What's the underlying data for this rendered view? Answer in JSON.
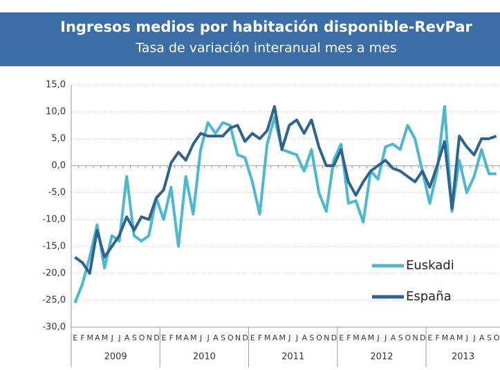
{
  "chart_data": {
    "type": "line",
    "title": "Ingresos medios por habitación disponible-RevPar",
    "subtitle": "Tasa de variación interanual mes a mes",
    "categories": [
      "E",
      "F",
      "M",
      "A",
      "M",
      "J",
      "J",
      "A",
      "S",
      "O",
      "N",
      "D",
      "E",
      "F",
      "M",
      "A",
      "M",
      "J",
      "J",
      "A",
      "S",
      "O",
      "N",
      "D",
      "E",
      "F",
      "M",
      "A",
      "M",
      "J",
      "J",
      "A",
      "S",
      "O",
      "N",
      "D",
      "E",
      "F",
      "M",
      "A",
      "M",
      "J",
      "J",
      "A",
      "S",
      "O",
      "N",
      "D",
      "E",
      "F",
      "M",
      "A",
      "M",
      "J",
      "J",
      "A",
      "S",
      "O"
    ],
    "years": [
      "2009",
      "2010",
      "2011",
      "2012",
      "2013"
    ],
    "series": [
      {
        "name": "Euskadi",
        "color": "#4bb8d2",
        "values": [
          -25.5,
          -22,
          -17,
          -11,
          -19,
          -13,
          -14,
          -2,
          -13,
          -14,
          -13,
          -6,
          -10,
          -4,
          -15,
          -2,
          -9,
          3,
          8,
          6,
          8,
          7.5,
          2,
          1.5,
          -3,
          -9,
          4,
          9,
          3,
          2.5,
          2,
          -1,
          3,
          -5,
          -8.5,
          1,
          4,
          -7,
          -6.5,
          -10.5,
          -1,
          -2.5,
          3.5,
          4,
          3,
          7.5,
          5,
          -1,
          -7,
          -1,
          11,
          -8.5,
          1,
          -5,
          -2,
          3,
          -1.5,
          -1.5
        ]
      },
      {
        "name": "España",
        "color": "#2e6290",
        "values": [
          -17,
          -18,
          -20,
          -12,
          -17,
          -15,
          -13,
          -9.5,
          -12,
          -9.5,
          -10,
          -6,
          -4.5,
          0.5,
          2.5,
          1,
          4,
          6,
          5.5,
          5.5,
          5.5,
          7,
          7.5,
          4.5,
          6,
          5,
          6.5,
          11,
          3,
          7.5,
          8.5,
          6,
          8.5,
          3.5,
          0,
          0,
          3,
          -3,
          -5.5,
          -3,
          -1,
          0,
          1,
          -0.5,
          -1,
          -2,
          -3,
          -1,
          -4,
          0,
          4.5,
          -8,
          5.5,
          3.5,
          2,
          5,
          5,
          5.5
        ]
      }
    ],
    "ylim": [
      -30,
      15
    ],
    "yticks": [
      {
        "value": -30,
        "label": "-30,0"
      },
      {
        "value": -25,
        "label": "-25,0"
      },
      {
        "value": -20,
        "label": "-20,0"
      },
      {
        "value": -15,
        "label": "-15,0"
      },
      {
        "value": -10,
        "label": "-10,0"
      },
      {
        "value": -5,
        "label": "-5,0"
      },
      {
        "value": 0,
        "label": "0,0"
      },
      {
        "value": 5,
        "label": "5,0"
      },
      {
        "value": 10,
        "label": "10,0"
      },
      {
        "value": 15,
        "label": "15,0"
      }
    ],
    "grid": true
  }
}
